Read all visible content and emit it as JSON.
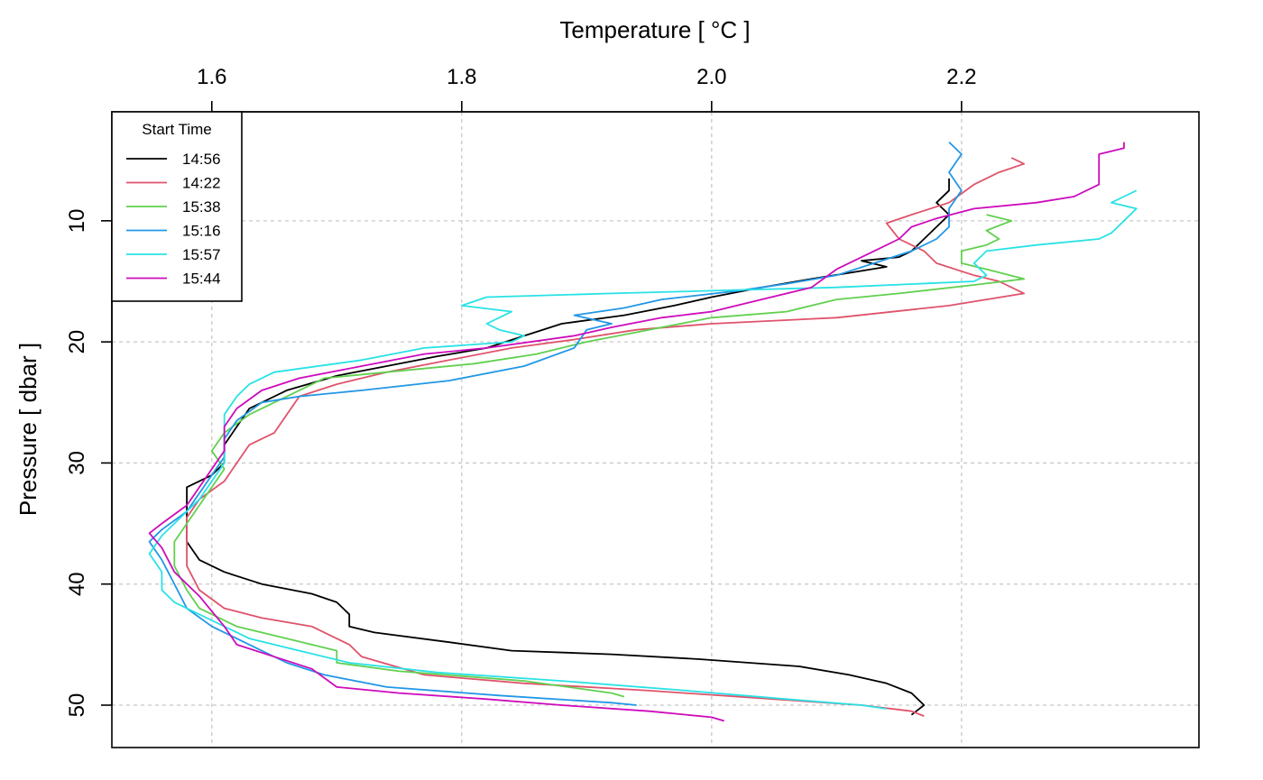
{
  "chart_data": {
    "type": "line",
    "title": "",
    "xlabel": "Temperature [ °C ]",
    "ylabel": "Pressure [ dbar ]",
    "xlim": [
      1.52,
      2.39
    ],
    "ylim": [
      53.5,
      1.0
    ],
    "y_reversed": true,
    "x_ticks": [
      1.6,
      1.8,
      2.0,
      2.2
    ],
    "x_tick_labels": [
      "1.6",
      "1.8",
      "2.0",
      "2.2"
    ],
    "y_ticks": [
      10,
      20,
      30,
      40,
      50
    ],
    "y_tick_labels": [
      "10",
      "20",
      "30",
      "40",
      "50"
    ],
    "x_axis_position": "top",
    "grid": true,
    "legend": {
      "title": "Start Time",
      "placement": "top-left"
    },
    "series": [
      {
        "name": "14:56",
        "color": "#000000",
        "points": [
          [
            2.19,
            6.5
          ],
          [
            2.19,
            7.5
          ],
          [
            2.18,
            8.5
          ],
          [
            2.19,
            9.5
          ],
          [
            2.18,
            10.5
          ],
          [
            2.17,
            11.5
          ],
          [
            2.16,
            12.5
          ],
          [
            2.15,
            13.0
          ],
          [
            2.12,
            13.3
          ],
          [
            2.14,
            13.8
          ],
          [
            2.11,
            14.3
          ],
          [
            2.08,
            14.8
          ],
          [
            2.04,
            15.5
          ],
          [
            2.0,
            16.3
          ],
          [
            1.97,
            17.0
          ],
          [
            1.93,
            17.8
          ],
          [
            1.88,
            18.5
          ],
          [
            1.85,
            19.5
          ],
          [
            1.82,
            20.5
          ],
          [
            1.78,
            21.2
          ],
          [
            1.74,
            22.0
          ],
          [
            1.7,
            22.8
          ],
          [
            1.66,
            24.0
          ],
          [
            1.63,
            25.5
          ],
          [
            1.62,
            27.0
          ],
          [
            1.61,
            28.5
          ],
          [
            1.61,
            30.0
          ],
          [
            1.6,
            31.0
          ],
          [
            1.58,
            32.0
          ],
          [
            1.58,
            33.5
          ],
          [
            1.58,
            35.0
          ],
          [
            1.58,
            36.5
          ],
          [
            1.59,
            38.0
          ],
          [
            1.61,
            39.0
          ],
          [
            1.64,
            40.0
          ],
          [
            1.68,
            40.8
          ],
          [
            1.7,
            41.5
          ],
          [
            1.71,
            42.5
          ],
          [
            1.71,
            43.5
          ],
          [
            1.73,
            44.0
          ],
          [
            1.79,
            44.8
          ],
          [
            1.84,
            45.5
          ],
          [
            1.92,
            45.8
          ],
          [
            1.99,
            46.2
          ],
          [
            2.07,
            46.8
          ],
          [
            2.11,
            47.5
          ],
          [
            2.14,
            48.2
          ],
          [
            2.16,
            49.0
          ],
          [
            2.17,
            50.0
          ],
          [
            2.16,
            50.8
          ]
        ]
      },
      {
        "name": "14:22",
        "color": "#DF536B",
        "points": [
          [
            2.24,
            4.8
          ],
          [
            2.25,
            5.3
          ],
          [
            2.23,
            6.0
          ],
          [
            2.21,
            7.0
          ],
          [
            2.19,
            8.5
          ],
          [
            2.16,
            9.5
          ],
          [
            2.14,
            10.2
          ],
          [
            2.15,
            11.5
          ],
          [
            2.17,
            12.5
          ],
          [
            2.18,
            13.5
          ],
          [
            2.21,
            14.5
          ],
          [
            2.23,
            15.0
          ],
          [
            2.25,
            16.0
          ],
          [
            2.19,
            17.0
          ],
          [
            2.1,
            18.0
          ],
          [
            2.0,
            18.5
          ],
          [
            1.94,
            19.0
          ],
          [
            1.89,
            19.8
          ],
          [
            1.84,
            20.5
          ],
          [
            1.79,
            21.5
          ],
          [
            1.74,
            22.5
          ],
          [
            1.7,
            23.5
          ],
          [
            1.67,
            24.5
          ],
          [
            1.66,
            26.0
          ],
          [
            1.65,
            27.5
          ],
          [
            1.63,
            28.5
          ],
          [
            1.62,
            30.0
          ],
          [
            1.61,
            31.5
          ],
          [
            1.59,
            33.0
          ],
          [
            1.58,
            34.5
          ],
          [
            1.58,
            36.5
          ],
          [
            1.58,
            38.5
          ],
          [
            1.59,
            40.5
          ],
          [
            1.61,
            42.0
          ],
          [
            1.64,
            42.8
          ],
          [
            1.68,
            43.5
          ],
          [
            1.71,
            45.0
          ],
          [
            1.72,
            46.0
          ],
          [
            1.77,
            47.5
          ],
          [
            1.85,
            48.2
          ],
          [
            1.95,
            48.8
          ],
          [
            2.05,
            49.5
          ],
          [
            2.12,
            50.0
          ],
          [
            2.16,
            50.5
          ],
          [
            2.17,
            50.9
          ]
        ]
      },
      {
        "name": "15:38",
        "color": "#61D04F",
        "points": [
          [
            2.22,
            9.5
          ],
          [
            2.24,
            10.0
          ],
          [
            2.22,
            10.8
          ],
          [
            2.23,
            11.5
          ],
          [
            2.22,
            12.0
          ],
          [
            2.2,
            12.5
          ],
          [
            2.2,
            13.5
          ],
          [
            2.22,
            14.0
          ],
          [
            2.25,
            14.8
          ],
          [
            2.21,
            15.3
          ],
          [
            2.15,
            16.0
          ],
          [
            2.1,
            16.5
          ],
          [
            2.06,
            17.5
          ],
          [
            2.0,
            18.0
          ],
          [
            1.95,
            19.0
          ],
          [
            1.9,
            20.0
          ],
          [
            1.86,
            21.0
          ],
          [
            1.81,
            21.8
          ],
          [
            1.74,
            22.5
          ],
          [
            1.69,
            23.0
          ],
          [
            1.67,
            24.0
          ],
          [
            1.65,
            25.0
          ],
          [
            1.63,
            26.0
          ],
          [
            1.61,
            27.5
          ],
          [
            1.6,
            29.0
          ],
          [
            1.61,
            30.5
          ],
          [
            1.6,
            32.0
          ],
          [
            1.59,
            33.5
          ],
          [
            1.58,
            35.0
          ],
          [
            1.57,
            36.5
          ],
          [
            1.57,
            38.5
          ],
          [
            1.58,
            40.5
          ],
          [
            1.59,
            42.0
          ],
          [
            1.62,
            43.5
          ],
          [
            1.66,
            44.5
          ],
          [
            1.7,
            45.5
          ],
          [
            1.7,
            46.5
          ],
          [
            1.75,
            47.2
          ],
          [
            1.85,
            48.0
          ],
          [
            1.92,
            49.0
          ],
          [
            1.93,
            49.3
          ]
        ]
      },
      {
        "name": "15:16",
        "color": "#2297E6",
        "points": [
          [
            2.19,
            3.5
          ],
          [
            2.2,
            4.5
          ],
          [
            2.19,
            6.0
          ],
          [
            2.2,
            7.5
          ],
          [
            2.19,
            9.0
          ],
          [
            2.19,
            10.5
          ],
          [
            2.18,
            11.5
          ],
          [
            2.16,
            12.5
          ],
          [
            2.13,
            13.5
          ],
          [
            2.1,
            14.5
          ],
          [
            2.06,
            15.2
          ],
          [
            2.02,
            15.8
          ],
          [
            1.96,
            16.5
          ],
          [
            1.93,
            17.2
          ],
          [
            1.89,
            17.8
          ],
          [
            1.92,
            18.5
          ],
          [
            1.9,
            19.0
          ],
          [
            1.89,
            20.5
          ],
          [
            1.85,
            22.0
          ],
          [
            1.79,
            23.2
          ],
          [
            1.72,
            24.0
          ],
          [
            1.67,
            24.5
          ],
          [
            1.64,
            25.0
          ],
          [
            1.62,
            26.5
          ],
          [
            1.61,
            28.0
          ],
          [
            1.61,
            29.5
          ],
          [
            1.6,
            31.0
          ],
          [
            1.59,
            32.5
          ],
          [
            1.58,
            34.0
          ],
          [
            1.56,
            35.5
          ],
          [
            1.55,
            36.5
          ],
          [
            1.56,
            38.0
          ],
          [
            1.57,
            40.0
          ],
          [
            1.58,
            42.0
          ],
          [
            1.6,
            43.5
          ],
          [
            1.63,
            45.0
          ],
          [
            1.66,
            46.5
          ],
          [
            1.69,
            47.5
          ],
          [
            1.74,
            48.5
          ],
          [
            1.83,
            49.2
          ],
          [
            1.92,
            49.8
          ],
          [
            1.94,
            50.0
          ]
        ]
      },
      {
        "name": "15:57",
        "color": "#28E2E5",
        "points": [
          [
            2.34,
            7.5
          ],
          [
            2.33,
            8.0
          ],
          [
            2.32,
            8.5
          ],
          [
            2.34,
            9.0
          ],
          [
            2.33,
            10.0
          ],
          [
            2.32,
            11.0
          ],
          [
            2.31,
            11.5
          ],
          [
            2.26,
            12.0
          ],
          [
            2.22,
            12.5
          ],
          [
            2.21,
            13.5
          ],
          [
            2.22,
            14.5
          ],
          [
            2.21,
            15.0
          ],
          [
            2.1,
            15.5
          ],
          [
            1.92,
            16.0
          ],
          [
            1.82,
            16.3
          ],
          [
            1.8,
            17.0
          ],
          [
            1.84,
            17.5
          ],
          [
            1.82,
            18.5
          ],
          [
            1.83,
            19.0
          ],
          [
            1.85,
            19.5
          ],
          [
            1.84,
            20.0
          ],
          [
            1.77,
            20.5
          ],
          [
            1.72,
            21.5
          ],
          [
            1.65,
            22.5
          ],
          [
            1.63,
            23.5
          ],
          [
            1.62,
            24.5
          ],
          [
            1.61,
            26.0
          ],
          [
            1.61,
            28.0
          ],
          [
            1.61,
            30.0
          ],
          [
            1.6,
            31.5
          ],
          [
            1.59,
            33.0
          ],
          [
            1.58,
            34.0
          ],
          [
            1.57,
            35.0
          ],
          [
            1.56,
            36.0
          ],
          [
            1.55,
            37.5
          ],
          [
            1.56,
            39.0
          ],
          [
            1.56,
            40.5
          ],
          [
            1.57,
            41.5
          ],
          [
            1.6,
            43.0
          ],
          [
            1.63,
            44.5
          ],
          [
            1.67,
            45.5
          ],
          [
            1.71,
            46.5
          ],
          [
            1.78,
            47.3
          ],
          [
            1.88,
            48.0
          ],
          [
            1.98,
            48.8
          ],
          [
            2.06,
            49.5
          ],
          [
            2.12,
            50.0
          ],
          [
            2.14,
            50.3
          ]
        ]
      },
      {
        "name": "15:44",
        "color": "#CD0BBC",
        "points": [
          [
            2.33,
            3.5
          ],
          [
            2.33,
            4.0
          ],
          [
            2.31,
            4.5
          ],
          [
            2.31,
            6.0
          ],
          [
            2.31,
            7.0
          ],
          [
            2.29,
            8.0
          ],
          [
            2.26,
            8.5
          ],
          [
            2.21,
            9.0
          ],
          [
            2.18,
            9.8
          ],
          [
            2.16,
            10.5
          ],
          [
            2.15,
            11.5
          ],
          [
            2.13,
            12.5
          ],
          [
            2.1,
            14.0
          ],
          [
            2.08,
            15.5
          ],
          [
            2.04,
            16.5
          ],
          [
            2.0,
            17.5
          ],
          [
            1.96,
            18.0
          ],
          [
            1.92,
            18.8
          ],
          [
            1.89,
            19.5
          ],
          [
            1.82,
            20.5
          ],
          [
            1.77,
            21.0
          ],
          [
            1.72,
            22.0
          ],
          [
            1.67,
            23.0
          ],
          [
            1.64,
            24.0
          ],
          [
            1.62,
            25.5
          ],
          [
            1.61,
            27.0
          ],
          [
            1.61,
            29.0
          ],
          [
            1.6,
            30.5
          ],
          [
            1.59,
            32.0
          ],
          [
            1.58,
            33.5
          ],
          [
            1.56,
            35.0
          ],
          [
            1.55,
            35.8
          ],
          [
            1.56,
            37.0
          ],
          [
            1.57,
            39.0
          ],
          [
            1.59,
            41.0
          ],
          [
            1.61,
            43.5
          ],
          [
            1.62,
            45.0
          ],
          [
            1.65,
            46.0
          ],
          [
            1.68,
            47.0
          ],
          [
            1.7,
            48.5
          ],
          [
            1.75,
            49.0
          ],
          [
            1.82,
            49.5
          ],
          [
            1.88,
            50.0
          ],
          [
            1.95,
            50.5
          ],
          [
            2.0,
            51.0
          ],
          [
            2.01,
            51.3
          ]
        ]
      }
    ]
  }
}
